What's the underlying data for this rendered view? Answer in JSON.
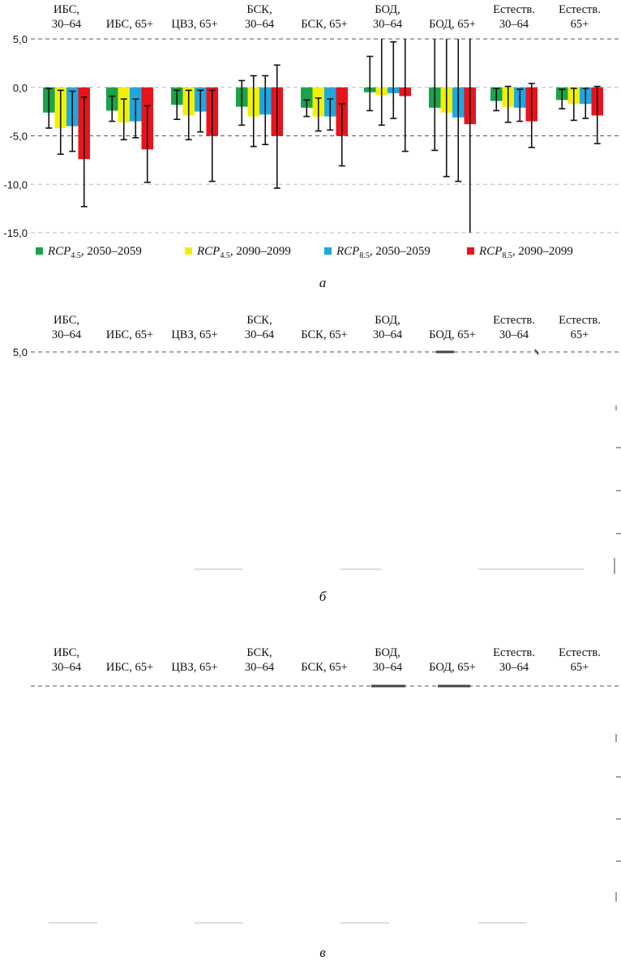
{
  "categories": [
    [
      "ИБС,",
      "30–64"
    ],
    [
      "ИБС, 65+"
    ],
    [
      "ЦВЗ, 65+"
    ],
    [
      "БСК,",
      "30–64"
    ],
    [
      "БСК, 65+"
    ],
    [
      "БОД,",
      "30–64"
    ],
    [
      "БОД, 65+"
    ],
    [
      "Естеств.",
      "30–64"
    ],
    [
      "Естеств.",
      "65+"
    ]
  ],
  "yticks": [
    "5,0",
    "0,0",
    "-5,0",
    "-10,0",
    "-15,0"
  ],
  "legend": [
    {
      "sym": "RCP",
      "sub": "4.5",
      "rest": ", 2050–2059",
      "color": "#1aa34a"
    },
    {
      "sym": "RCP",
      "sub": "4.5",
      "rest": ", 2090–2099",
      "color": "#f2f200"
    },
    {
      "sym": "RCP",
      "sub": "8.5",
      "rest": ", 2050–2059",
      "color": "#1ea7e1"
    },
    {
      "sym": "RCP",
      "sub": "8.5",
      "rest": ", 2090–2099",
      "color": "#e8141c"
    }
  ],
  "panels": [
    {
      "letter": "а"
    },
    {
      "letter": "б"
    },
    {
      "letter": "в"
    }
  ],
  "chart_data": [
    {
      "type": "bar",
      "categories": [
        "ИБС, 30–64",
        "ИБС, 65+",
        "ЦВЗ, 65+",
        "БСК, 30–64",
        "БСК, 65+",
        "БОД, 30–64",
        "БОД, 65+",
        "Естеств. 30–64",
        "Естеств. 65+"
      ],
      "ylim": [
        -15,
        5
      ],
      "grid": true,
      "legend_position": "bottom",
      "series": [
        {
          "name": "RCP4.5, 2050–2059",
          "values": [
            -2.6,
            -2.4,
            -1.8,
            -2.0,
            -2.1,
            -0.5,
            -2.1,
            -1.4,
            -1.3
          ],
          "error_low": [
            -4.2,
            -3.5,
            -3.3,
            -3.9,
            -3.0,
            -2.4,
            -6.5,
            -2.4,
            -2.2
          ],
          "error_high": [
            -0.1,
            -0.9,
            -0.3,
            0.7,
            -1.3,
            3.2,
            5.0,
            -0.1,
            -0.2
          ]
        },
        {
          "name": "RCP4.5, 2090–2099",
          "values": [
            -4.2,
            -3.6,
            -2.9,
            -3.0,
            -3.0,
            -0.8,
            -2.6,
            -2.0,
            -1.7
          ],
          "error_low": [
            -6.9,
            -5.4,
            -5.4,
            -6.1,
            -4.5,
            -3.9,
            -9.2,
            -3.6,
            -3.4
          ],
          "error_high": [
            -0.3,
            -1.2,
            -0.3,
            1.2,
            -1.1,
            5.0,
            5.0,
            0.1,
            -0.1
          ]
        },
        {
          "name": "RCP8.5, 2050–2059",
          "values": [
            -4.0,
            -3.5,
            -2.5,
            -2.8,
            -3.0,
            -0.6,
            -3.1,
            -2.1,
            -1.7
          ],
          "error_low": [
            -6.6,
            -5.2,
            -4.6,
            -5.9,
            -4.4,
            -3.2,
            -9.7,
            -3.5,
            -3.2
          ],
          "error_high": [
            -0.4,
            -1.2,
            -0.3,
            1.2,
            -1.2,
            4.7,
            5.0,
            -0.2,
            -0.1
          ]
        },
        {
          "name": "RCP8.5, 2090–2099",
          "values": [
            -7.4,
            -6.4,
            -5.0,
            -5.0,
            -5.0,
            -0.9,
            -3.8,
            -3.5,
            -2.9
          ],
          "error_low": [
            -12.3,
            -9.8,
            -9.7,
            -10.4,
            -8.1,
            -6.6,
            -15.0,
            -6.2,
            -5.8
          ],
          "error_high": [
            -1.0,
            -1.9,
            -0.3,
            2.3,
            -1.7,
            5.0,
            5.0,
            0.4,
            0.1
          ]
        }
      ]
    }
  ]
}
